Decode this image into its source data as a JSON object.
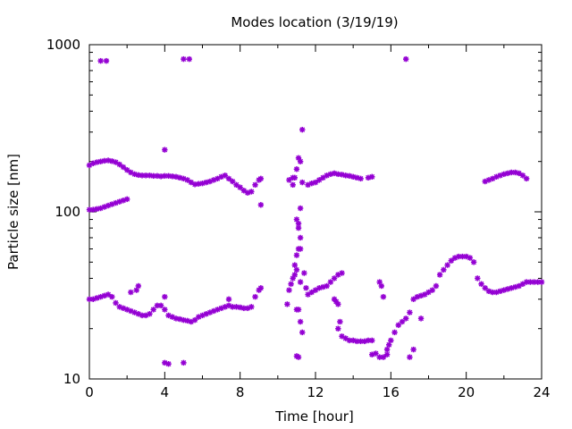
{
  "chart_data": {
    "type": "scatter",
    "title": "Modes location (3/19/19)",
    "xlabel": "Time [hour]",
    "ylabel": "Particle size [nm]",
    "xlim": [
      0,
      24
    ],
    "ylim": [
      10,
      1000
    ],
    "yscale": "log",
    "grid": false,
    "legend": "none",
    "x_ticks": [
      "0",
      "4",
      "8",
      "12",
      "16",
      "20",
      "24"
    ],
    "y_ticks": [
      "10",
      "100",
      "1000"
    ],
    "marker_color": "#9400d3",
    "series": [
      {
        "points": [
          [
            0.0,
            190
          ],
          [
            0.2,
            195
          ],
          [
            0.4,
            198
          ],
          [
            0.6,
            200
          ],
          [
            0.8,
            202
          ],
          [
            1.0,
            203
          ],
          [
            1.2,
            201
          ],
          [
            1.4,
            198
          ],
          [
            1.6,
            192
          ],
          [
            1.8,
            185
          ],
          [
            2.0,
            178
          ],
          [
            2.2,
            172
          ],
          [
            2.4,
            168
          ],
          [
            2.6,
            166
          ],
          [
            2.8,
            165
          ],
          [
            3.0,
            165
          ],
          [
            3.2,
            165
          ],
          [
            3.4,
            164
          ],
          [
            3.6,
            164
          ],
          [
            3.8,
            163
          ],
          [
            4.0,
            164
          ],
          [
            4.2,
            164
          ],
          [
            4.4,
            163
          ],
          [
            4.6,
            162
          ],
          [
            4.8,
            160
          ],
          [
            5.0,
            158
          ],
          [
            5.2,
            155
          ],
          [
            5.4,
            150
          ],
          [
            5.6,
            146
          ],
          [
            5.8,
            147
          ],
          [
            6.0,
            148
          ],
          [
            6.2,
            150
          ],
          [
            6.4,
            152
          ],
          [
            6.6,
            155
          ],
          [
            6.8,
            158
          ],
          [
            7.0,
            162
          ],
          [
            7.2,
            165
          ],
          [
            7.4,
            158
          ],
          [
            7.6,
            152
          ],
          [
            7.8,
            145
          ],
          [
            8.0,
            140
          ],
          [
            8.2,
            134
          ],
          [
            8.4,
            130
          ],
          [
            8.6,
            132
          ],
          [
            8.8,
            145
          ],
          [
            9.0,
            155
          ],
          [
            9.1,
            158
          ],
          [
            0.0,
            103
          ],
          [
            0.2,
            103
          ],
          [
            0.4,
            104
          ],
          [
            0.6,
            105
          ],
          [
            0.8,
            107
          ],
          [
            1.0,
            109
          ],
          [
            1.2,
            111
          ],
          [
            1.4,
            113
          ],
          [
            1.6,
            115
          ],
          [
            1.8,
            117
          ],
          [
            2.0,
            119
          ],
          [
            0.0,
            30
          ],
          [
            0.2,
            30
          ],
          [
            0.4,
            30.5
          ],
          [
            0.6,
            31
          ],
          [
            0.8,
            31.5
          ],
          [
            1.0,
            32
          ],
          [
            1.2,
            31
          ],
          [
            1.4,
            28.5
          ],
          [
            1.6,
            27
          ],
          [
            1.8,
            26.5
          ],
          [
            2.0,
            26
          ],
          [
            2.2,
            25.5
          ],
          [
            2.4,
            25
          ],
          [
            2.6,
            24.5
          ],
          [
            2.8,
            24
          ],
          [
            3.0,
            24
          ],
          [
            3.2,
            24.5
          ],
          [
            3.4,
            26
          ],
          [
            3.6,
            27.5
          ],
          [
            3.8,
            27.5
          ],
          [
            4.0,
            26
          ],
          [
            4.2,
            24
          ],
          [
            4.4,
            23.5
          ],
          [
            4.6,
            23
          ],
          [
            4.8,
            22.8
          ],
          [
            5.0,
            22.5
          ],
          [
            5.2,
            22.3
          ],
          [
            5.4,
            22
          ],
          [
            5.6,
            22.5
          ],
          [
            5.8,
            23.5
          ],
          [
            6.0,
            24
          ],
          [
            6.2,
            24.5
          ],
          [
            6.4,
            25
          ],
          [
            6.6,
            25.5
          ],
          [
            6.8,
            26
          ],
          [
            7.0,
            26.5
          ],
          [
            7.2,
            27
          ],
          [
            7.4,
            27.5
          ],
          [
            7.6,
            27
          ],
          [
            7.8,
            27
          ],
          [
            8.0,
            26.8
          ],
          [
            8.2,
            26.5
          ],
          [
            8.4,
            26.5
          ],
          [
            8.6,
            27
          ],
          [
            8.8,
            31
          ],
          [
            9.0,
            34
          ],
          [
            9.1,
            35
          ],
          [
            0.6,
            800
          ],
          [
            0.9,
            800
          ],
          [
            5.0,
            820
          ],
          [
            5.3,
            820
          ],
          [
            16.8,
            820
          ],
          [
            4.0,
            235
          ],
          [
            9.1,
            110
          ],
          [
            2.2,
            33
          ],
          [
            2.5,
            34
          ],
          [
            2.6,
            36
          ],
          [
            4.0,
            31
          ],
          [
            4.0,
            12.5
          ],
          [
            4.2,
            12.3
          ],
          [
            5.0,
            12.5
          ],
          [
            7.4,
            30
          ],
          [
            10.5,
            28
          ],
          [
            10.6,
            34
          ],
          [
            10.7,
            37
          ],
          [
            10.8,
            40
          ],
          [
            10.9,
            48
          ],
          [
            10.9,
            42
          ],
          [
            11.0,
            45
          ],
          [
            11.0,
            55
          ],
          [
            11.1,
            60
          ],
          [
            11.1,
            26
          ],
          [
            11.2,
            22
          ],
          [
            11.3,
            19
          ],
          [
            11.0,
            26
          ],
          [
            11.0,
            13.7
          ],
          [
            11.1,
            13.5
          ],
          [
            11.2,
            38
          ],
          [
            11.4,
            43
          ],
          [
            11.0,
            90
          ],
          [
            11.1,
            85
          ],
          [
            11.1,
            80
          ],
          [
            11.2,
            70
          ],
          [
            11.2,
            60
          ],
          [
            11.2,
            105
          ],
          [
            11.3,
            310
          ],
          [
            11.1,
            210
          ],
          [
            11.2,
            200
          ],
          [
            10.6,
            155
          ],
          [
            10.8,
            160
          ],
          [
            10.9,
            160
          ],
          [
            11.0,
            180
          ],
          [
            10.8,
            145
          ],
          [
            11.3,
            150
          ],
          [
            11.5,
            35
          ],
          [
            11.6,
            145
          ],
          [
            11.8,
            148
          ],
          [
            12.0,
            150
          ],
          [
            12.2,
            155
          ],
          [
            12.4,
            160
          ],
          [
            12.6,
            165
          ],
          [
            12.8,
            168
          ],
          [
            13.0,
            170
          ],
          [
            13.2,
            168
          ],
          [
            13.4,
            167
          ],
          [
            13.6,
            165
          ],
          [
            13.8,
            164
          ],
          [
            14.0,
            162
          ],
          [
            14.2,
            160
          ],
          [
            14.4,
            158
          ],
          [
            14.8,
            160
          ],
          [
            15.0,
            162
          ],
          [
            11.6,
            32
          ],
          [
            11.8,
            33
          ],
          [
            12.0,
            34
          ],
          [
            12.2,
            35
          ],
          [
            12.4,
            35.5
          ],
          [
            12.6,
            36
          ],
          [
            12.8,
            38
          ],
          [
            13.0,
            40
          ],
          [
            13.2,
            42
          ],
          [
            13.4,
            43
          ],
          [
            13.0,
            30
          ],
          [
            13.1,
            29
          ],
          [
            13.2,
            28
          ],
          [
            13.3,
            22
          ],
          [
            13.2,
            20
          ],
          [
            13.4,
            18
          ],
          [
            13.6,
            17.5
          ],
          [
            13.8,
            17
          ],
          [
            14.0,
            17
          ],
          [
            14.2,
            16.8
          ],
          [
            14.4,
            16.8
          ],
          [
            14.6,
            16.8
          ],
          [
            14.8,
            17
          ],
          [
            15.0,
            17
          ],
          [
            15.0,
            14
          ],
          [
            15.2,
            14.2
          ],
          [
            15.4,
            13.5
          ],
          [
            15.6,
            13.5
          ],
          [
            15.8,
            14
          ],
          [
            15.4,
            38
          ],
          [
            15.5,
            36
          ],
          [
            15.6,
            31
          ],
          [
            15.8,
            15
          ],
          [
            15.9,
            16
          ],
          [
            16.0,
            17
          ],
          [
            16.2,
            19
          ],
          [
            16.4,
            21
          ],
          [
            16.6,
            22
          ],
          [
            16.8,
            23
          ],
          [
            17.0,
            25
          ],
          [
            17.2,
            30
          ],
          [
            17.4,
            31
          ],
          [
            17.6,
            31.5
          ],
          [
            17.8,
            32
          ],
          [
            18.0,
            33
          ],
          [
            18.2,
            34
          ],
          [
            18.4,
            36
          ],
          [
            18.6,
            42
          ],
          [
            18.8,
            45
          ],
          [
            19.0,
            48
          ],
          [
            19.2,
            51
          ],
          [
            19.4,
            53
          ],
          [
            19.6,
            54
          ],
          [
            19.8,
            54
          ],
          [
            20.0,
            54
          ],
          [
            20.2,
            53
          ],
          [
            20.4,
            50
          ],
          [
            20.6,
            40
          ],
          [
            20.8,
            37
          ],
          [
            21.0,
            35
          ],
          [
            21.2,
            33.5
          ],
          [
            21.4,
            33
          ],
          [
            21.6,
            33
          ],
          [
            21.8,
            33.5
          ],
          [
            22.0,
            34
          ],
          [
            22.2,
            34.5
          ],
          [
            22.4,
            35
          ],
          [
            22.6,
            35.5
          ],
          [
            22.8,
            36
          ],
          [
            23.0,
            37
          ],
          [
            23.2,
            38
          ],
          [
            23.4,
            38
          ],
          [
            23.6,
            38
          ],
          [
            23.8,
            38
          ],
          [
            24.0,
            38
          ],
          [
            17.0,
            13.5
          ],
          [
            17.2,
            15
          ],
          [
            17.6,
            23
          ],
          [
            21.0,
            152
          ],
          [
            21.2,
            155
          ],
          [
            21.4,
            158
          ],
          [
            21.6,
            162
          ],
          [
            21.8,
            165
          ],
          [
            22.0,
            168
          ],
          [
            22.2,
            170
          ],
          [
            22.4,
            172
          ],
          [
            22.6,
            172
          ],
          [
            22.8,
            170
          ],
          [
            23.0,
            165
          ],
          [
            23.2,
            158
          ]
        ]
      }
    ]
  }
}
